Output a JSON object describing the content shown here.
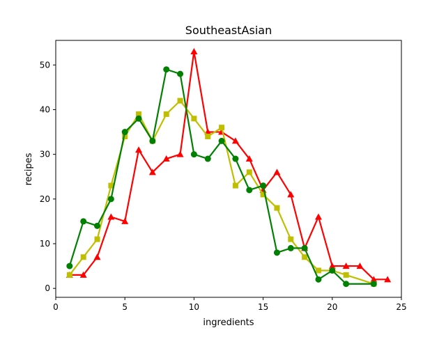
{
  "chart_data": {
    "type": "line",
    "title": "SoutheastAsian",
    "xlabel": "ingredients",
    "ylabel": "recipes",
    "xlim": [
      0,
      25
    ],
    "ylim": [
      -2,
      55.5
    ],
    "xticks": [
      0,
      5,
      10,
      15,
      20,
      25
    ],
    "yticks": [
      0,
      10,
      20,
      30,
      40,
      50
    ],
    "grid": false,
    "legend": "none",
    "series": [
      {
        "color": "#ff0000",
        "marker": "triangle",
        "x": [
          1,
          2,
          3,
          4,
          5,
          6,
          7,
          8,
          9,
          10,
          11,
          12,
          13,
          14,
          15,
          16,
          17,
          18,
          19,
          20,
          21,
          22,
          23,
          24
        ],
        "values": [
          3,
          3,
          7,
          16,
          15,
          31,
          26,
          29,
          30,
          53,
          35,
          35,
          33,
          29,
          22,
          26,
          21,
          9,
          16,
          5,
          5,
          5,
          2,
          2
        ]
      },
      {
        "color": "#bfbf00",
        "marker": "square",
        "x": [
          1,
          2,
          3,
          4,
          5,
          6,
          7,
          8,
          9,
          10,
          11,
          12,
          13,
          14,
          15,
          16,
          17,
          18,
          19,
          20,
          21,
          23
        ],
        "values": [
          3,
          7,
          11,
          23,
          34,
          39,
          33,
          39,
          42,
          38,
          34,
          36,
          23,
          26,
          21,
          18,
          11,
          7,
          4,
          4,
          3,
          1
        ]
      },
      {
        "color": "#008000",
        "marker": "circle",
        "x": [
          1,
          2,
          3,
          4,
          5,
          6,
          7,
          8,
          9,
          10,
          11,
          12,
          13,
          14,
          15,
          16,
          17,
          18,
          19,
          20,
          21,
          23
        ],
        "values": [
          5,
          15,
          14,
          20,
          35,
          38,
          33,
          49,
          48,
          30,
          29,
          33,
          29,
          22,
          23,
          8,
          9,
          9,
          2,
          4,
          1,
          1
        ]
      }
    ]
  }
}
